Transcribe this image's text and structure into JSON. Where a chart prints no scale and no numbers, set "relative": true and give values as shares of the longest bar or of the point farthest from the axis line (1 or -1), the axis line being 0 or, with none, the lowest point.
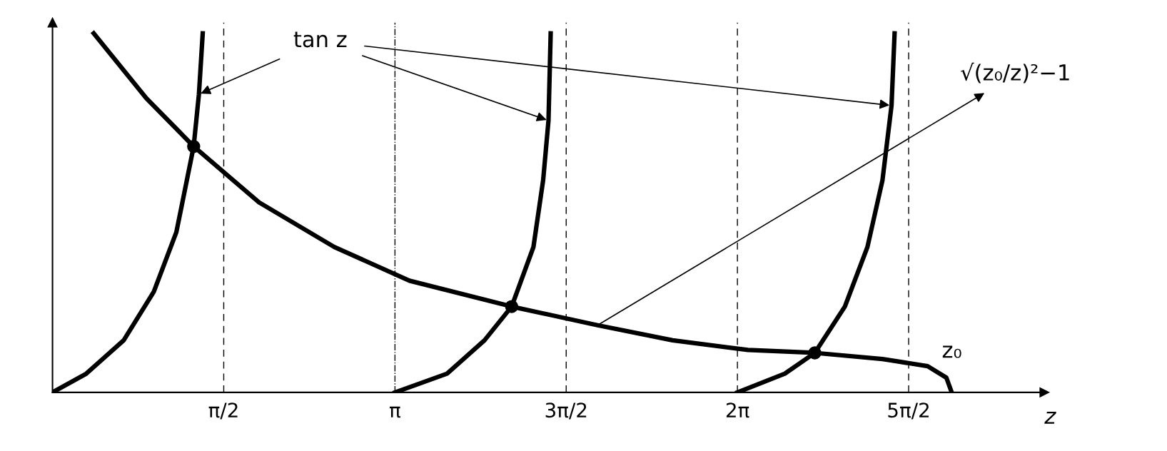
{
  "chart_data": {
    "type": "line",
    "relative": true,
    "xlabel": "z",
    "xlim": [
      0,
      9.1
    ],
    "xticks": [
      {
        "value": 1.5708,
        "label": "π/2"
      },
      {
        "value": 3.1416,
        "label": "π"
      },
      {
        "value": 4.7124,
        "label": "3π/2"
      },
      {
        "value": 6.2832,
        "label": "2π"
      },
      {
        "value": 7.854,
        "label": "5π/2"
      }
    ],
    "series": [
      {
        "name": "tan z",
        "color": "#000000",
        "x": [
          0.0,
          0.309,
          0.653,
          0.929,
          1.136,
          1.295,
          1.343,
          1.378,
          null,
          3.142,
          3.619,
          3.963,
          4.212,
          4.412,
          4.501,
          4.55,
          4.57,
          null,
          6.283,
          6.718,
          6.993,
          7.269,
          7.476,
          7.614,
          7.697,
          7.725
        ],
        "values": [
          0.0,
          0.052,
          0.145,
          0.28,
          0.446,
          0.685,
          0.83,
          1.0,
          null,
          0.0,
          0.052,
          0.145,
          0.239,
          0.405,
          0.591,
          0.757,
          1.0,
          null,
          0.0,
          0.052,
          0.11,
          0.239,
          0.405,
          0.591,
          0.799,
          1.0
        ]
      },
      {
        "color": "#000000",
        "x": [
          0.378,
          0.861,
          1.295,
          1.895,
          2.585,
          3.275,
          4.212,
          5.0,
          5.689,
          6.379,
          6.993,
          7.614,
          8.028,
          8.2,
          8.249
        ],
        "values": [
          1.0,
          0.819,
          0.685,
          0.529,
          0.405,
          0.311,
          0.239,
          0.187,
          0.145,
          0.118,
          0.11,
          0.093,
          0.073,
          0.041,
          0.0
        ]
      },
      {
        "type": "scatter",
        "marker": "circle",
        "color": "#000000",
        "x": [
          1.295,
          4.212,
          6.993
        ],
        "values": [
          0.685,
          0.239,
          0.11
        ]
      }
    ],
    "ref_lines": [
      {
        "axis": "x",
        "value": 1.5708,
        "line_style": "dashed",
        "color": "#000000"
      },
      {
        "axis": "x",
        "value": 3.1416,
        "line_style": "dashdot",
        "color": "#000000"
      },
      {
        "axis": "x",
        "value": 4.7124,
        "line_style": "dashed",
        "color": "#000000"
      },
      {
        "axis": "x",
        "value": 6.2832,
        "line_style": "dashed",
        "color": "#000000"
      },
      {
        "axis": "x",
        "value": 7.854,
        "line_style": "dashed",
        "color": "#000000"
      }
    ],
    "annotations": [
      {
        "text": "√(z₀/z)²−1",
        "x": 5.0,
        "y": 0.187
      },
      {
        "text": "z₀",
        "x": 8.249,
        "y": 0.0
      }
    ],
    "grid": false,
    "legend": false,
    "marker": "none",
    "line_style": "solid"
  }
}
